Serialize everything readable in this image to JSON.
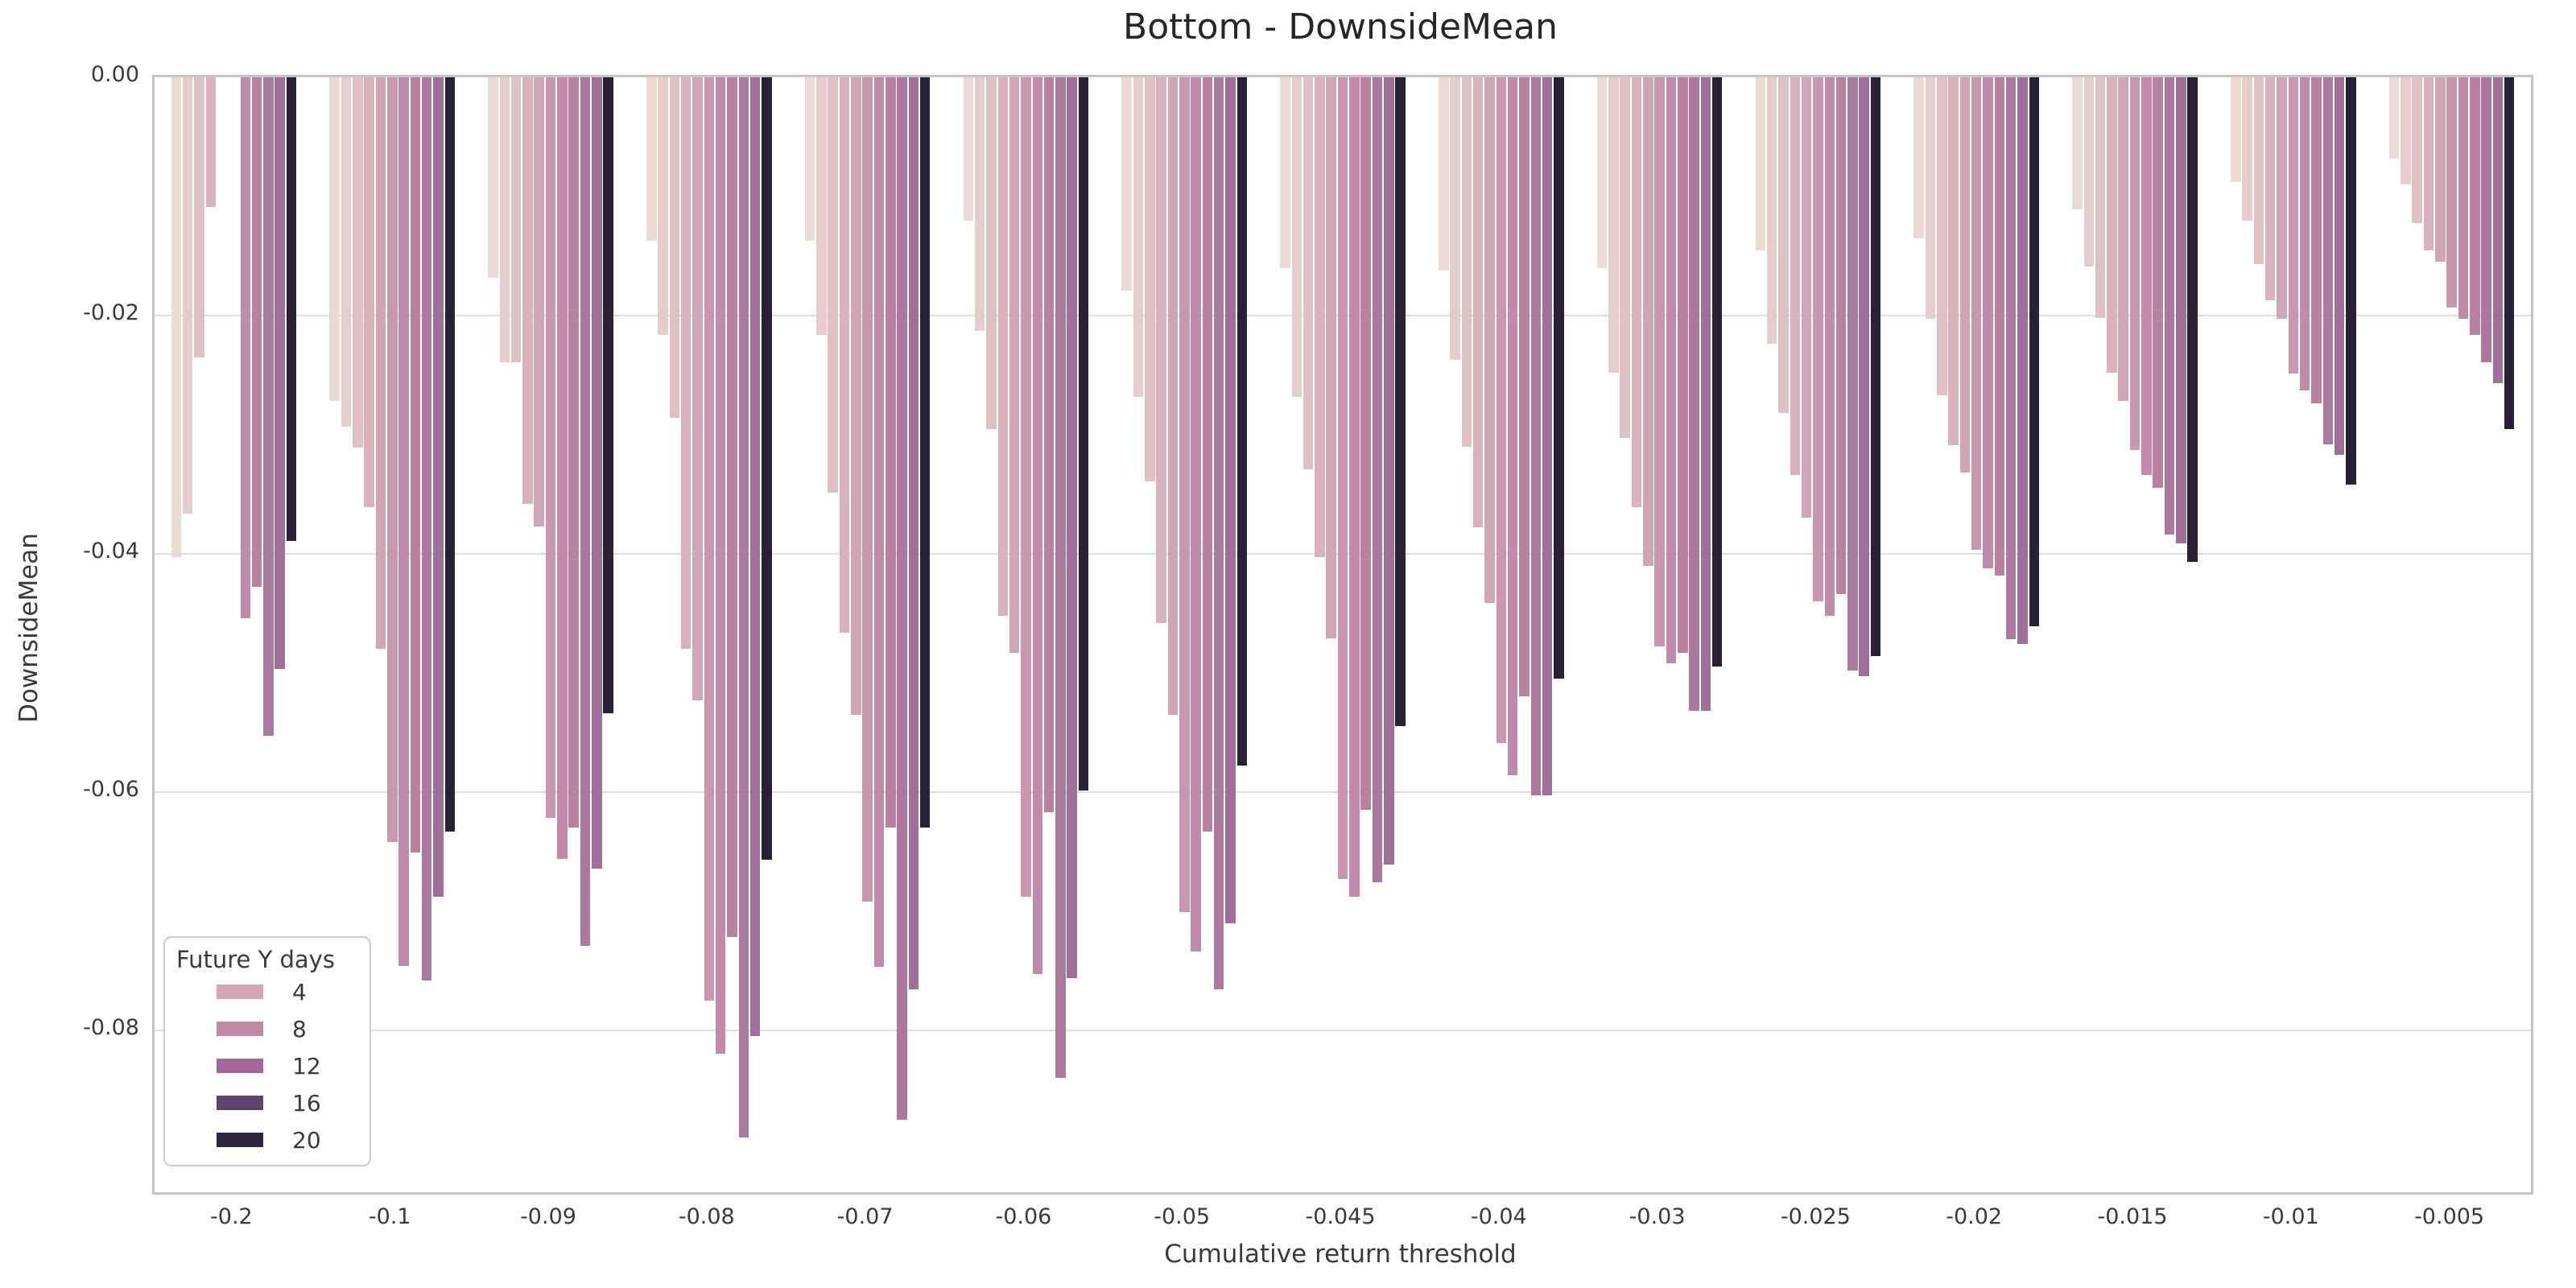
{
  "figure": {
    "title": "Bottom - DownsideMean"
  },
  "chart_data": {
    "type": "bar",
    "title": "Bottom - DownsideMean",
    "xlabel": "Cumulative return threshold",
    "ylabel": "DownsideMean",
    "orientation": "vertical-negative",
    "grid": "horizontal",
    "ylim": [
      -0.0936,
      0
    ],
    "y_ticks": [
      0,
      -0.02,
      -0.04,
      -0.06,
      -0.08
    ],
    "y_tick_labels": [
      "0.00",
      "-0.02",
      "-0.04",
      "-0.06",
      "-0.08"
    ],
    "categories": [
      "-0.2",
      "-0.1",
      "-0.09",
      "-0.08",
      "-0.07",
      "-0.06",
      "-0.05",
      "-0.045",
      "-0.04",
      "-0.03",
      "-0.025",
      "-0.02",
      "-0.015",
      "-0.01",
      "-0.005"
    ],
    "group_width_fraction": 0.8,
    "legend": {
      "title": "Future Y days",
      "position": "lower left",
      "entries": [
        {
          "label": "4",
          "color": "#d4a6b4"
        },
        {
          "label": "8",
          "color": "#c289a5"
        },
        {
          "label": "12",
          "color": "#a3689a"
        },
        {
          "label": "16",
          "color": "#5e4570"
        },
        {
          "label": "20",
          "color": "#2e2340"
        }
      ]
    },
    "series": [
      {
        "name": "series-1",
        "color": "#ecdad5",
        "values": [
          -0.0403,
          -0.0272,
          -0.0168,
          -0.0137,
          -0.0137,
          -0.012,
          -0.0179,
          -0.016,
          -0.0162,
          -0.016,
          -0.0145,
          -0.0135,
          -0.0111,
          -0.0088,
          -0.0068
        ]
      },
      {
        "name": "series-2",
        "color": "#e5cdcb",
        "values": [
          -0.0366,
          -0.0293,
          -0.0239,
          -0.0216,
          -0.0216,
          -0.0213,
          -0.0268,
          -0.0268,
          -0.0237,
          -0.0248,
          -0.0224,
          -0.0203,
          -0.0159,
          -0.012,
          -0.009
        ]
      },
      {
        "name": "series-3",
        "color": "#dec1c3",
        "values": [
          -0.0235,
          -0.0311,
          -0.0239,
          -0.0286,
          -0.0349,
          -0.0295,
          -0.0339,
          -0.0329,
          -0.031,
          -0.0303,
          -0.0282,
          -0.0267,
          -0.0202,
          -0.0157,
          -0.0122
        ]
      },
      {
        "name": "series-4",
        "color": "#d8b3bd",
        "values": [
          -0.0109,
          -0.0361,
          -0.0358,
          -0.048,
          -0.0466,
          -0.0452,
          -0.0458,
          -0.0403,
          -0.0378,
          -0.0361,
          -0.0334,
          -0.0309,
          -0.0248,
          -0.0187,
          -0.0145
        ]
      },
      {
        "name": "series-5",
        "color": "#d0a5b6",
        "values": [
          null,
          -0.048,
          -0.0377,
          -0.0523,
          -0.0535,
          -0.0483,
          -0.0535,
          -0.0471,
          -0.0441,
          -0.041,
          -0.037,
          -0.0332,
          -0.0272,
          -0.0203,
          -0.0155
        ]
      },
      {
        "name": "series-6",
        "color": "#c998b0",
        "values": [
          null,
          -0.0642,
          -0.0622,
          -0.0775,
          -0.0692,
          -0.0688,
          -0.0701,
          -0.0673,
          -0.0559,
          -0.0478,
          -0.044,
          -0.0397,
          -0.0313,
          -0.0249,
          -0.0193
        ]
      },
      {
        "name": "series-7",
        "color": "#c08baa",
        "values": [
          -0.0454,
          -0.0746,
          -0.0656,
          -0.082,
          -0.0747,
          -0.0753,
          -0.0734,
          -0.0688,
          -0.0586,
          -0.0492,
          -0.0452,
          -0.0412,
          -0.0334,
          -0.0263,
          -0.0203
        ]
      },
      {
        "name": "series-8",
        "color": "#b881a0",
        "values": [
          -0.0428,
          -0.0651,
          -0.063,
          -0.0722,
          -0.063,
          -0.0617,
          -0.0633,
          -0.0615,
          -0.052,
          -0.0483,
          -0.0434,
          -0.0418,
          -0.0345,
          -0.0274,
          -0.0216
        ]
      },
      {
        "name": "series-9",
        "color": "#ab799d",
        "values": [
          -0.0553,
          -0.0758,
          -0.0729,
          -0.089,
          -0.0875,
          -0.084,
          -0.0766,
          -0.0676,
          -0.0603,
          -0.0532,
          -0.0498,
          -0.0472,
          -0.0384,
          -0.0308,
          -0.0239
        ]
      },
      {
        "name": "series-10",
        "color": "#9f6e99",
        "values": [
          -0.0497,
          -0.0688,
          -0.0664,
          -0.0805,
          -0.0766,
          -0.0756,
          -0.071,
          -0.0661,
          -0.0603,
          -0.0532,
          -0.0503,
          -0.0476,
          -0.0391,
          -0.0317,
          -0.0257
        ]
      },
      {
        "name": "series-11",
        "color": "#2a2036",
        "values": [
          -0.0389,
          -0.0633,
          -0.0534,
          -0.0657,
          -0.063,
          -0.0599,
          -0.0578,
          -0.0545,
          -0.0505,
          -0.0495,
          -0.0486,
          -0.0461,
          -0.0407,
          -0.0342,
          -0.0295
        ]
      }
    ]
  }
}
